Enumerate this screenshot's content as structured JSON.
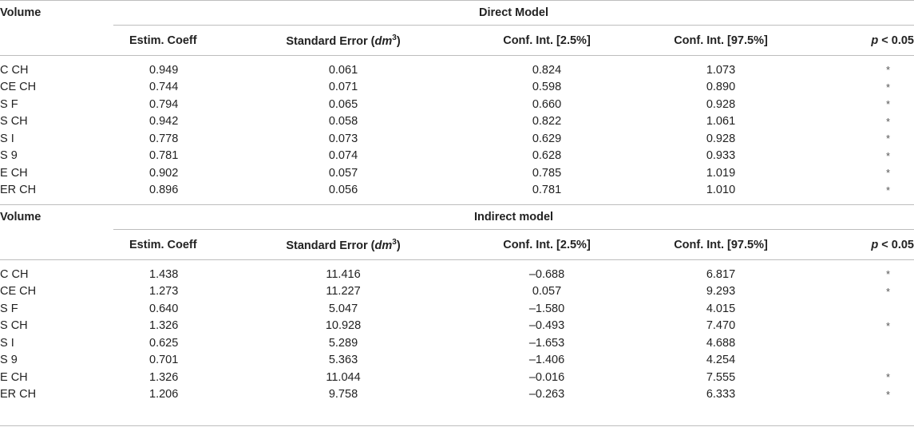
{
  "sections": [
    {
      "volume_label": "Volume",
      "model_title": "Direct Model",
      "headers": {
        "estim": "Estim. Coeff",
        "se_prefix": "Standard Error (",
        "se_unit": "dm",
        "se_exp": "3",
        "se_suffix": ")",
        "ci_low": "Conf. Int. [2.5%]",
        "ci_high": "Conf. Int. [97.5%]",
        "p_var": "p",
        "p_rest": " < 0.05"
      },
      "rows": [
        {
          "label": "C CH",
          "estim": "0.949",
          "se": "0.061",
          "lo": "0.824",
          "hi": "1.073",
          "sig": "*"
        },
        {
          "label": "CE CH",
          "estim": "0.744",
          "se": "0.071",
          "lo": "0.598",
          "hi": "0.890",
          "sig": "*"
        },
        {
          "label": "S F",
          "estim": "0.794",
          "se": "0.065",
          "lo": "0.660",
          "hi": "0.928",
          "sig": "*"
        },
        {
          "label": "S CH",
          "estim": "0.942",
          "se": "0.058",
          "lo": "0.822",
          "hi": "1.061",
          "sig": "*"
        },
        {
          "label": "S I",
          "estim": "0.778",
          "se": "0.073",
          "lo": "0.629",
          "hi": "0.928",
          "sig": "*"
        },
        {
          "label": "S 9",
          "estim": "0.781",
          "se": "0.074",
          "lo": "0.628",
          "hi": "0.933",
          "sig": "*"
        },
        {
          "label": "E CH",
          "estim": "0.902",
          "se": "0.057",
          "lo": "0.785",
          "hi": "1.019",
          "sig": "*"
        },
        {
          "label": "ER CH",
          "estim": "0.896",
          "se": "0.056",
          "lo": "0.781",
          "hi": "1.010",
          "sig": "*"
        }
      ]
    },
    {
      "volume_label": "Volume",
      "model_title": "Indirect model",
      "headers": {
        "estim": "Estim. Coeff",
        "se_prefix": "Standard Error (",
        "se_unit": "dm",
        "se_exp": "3",
        "se_suffix": ")",
        "ci_low": "Conf. Int. [2.5%]",
        "ci_high": "Conf. Int. [97.5%]",
        "p_var": "p",
        "p_rest": " < 0.05"
      },
      "rows": [
        {
          "label": "C CH",
          "estim": "1.438",
          "se": "11.416",
          "lo": "–0.688",
          "hi": "6.817",
          "sig": "*"
        },
        {
          "label": "CE CH",
          "estim": "1.273",
          "se": "11.227",
          "lo": "0.057",
          "hi": "9.293",
          "sig": "*"
        },
        {
          "label": "S F",
          "estim": "0.640",
          "se": "5.047",
          "lo": "–1.580",
          "hi": "4.015",
          "sig": ""
        },
        {
          "label": "S CH",
          "estim": "1.326",
          "se": "10.928",
          "lo": "–0.493",
          "hi": "7.470",
          "sig": "*"
        },
        {
          "label": "S I",
          "estim": "0.625",
          "se": "5.289",
          "lo": "–1.653",
          "hi": "4.688",
          "sig": ""
        },
        {
          "label": "S 9",
          "estim": "0.701",
          "se": "5.363",
          "lo": "–1.406",
          "hi": "4.254",
          "sig": ""
        },
        {
          "label": "E CH",
          "estim": "1.326",
          "se": "11.044",
          "lo": "–0.016",
          "hi": "7.555",
          "sig": "*"
        },
        {
          "label": "ER CH",
          "estim": "1.206",
          "se": "9.758",
          "lo": "–0.263",
          "hi": "6.333",
          "sig": "*"
        }
      ]
    }
  ]
}
